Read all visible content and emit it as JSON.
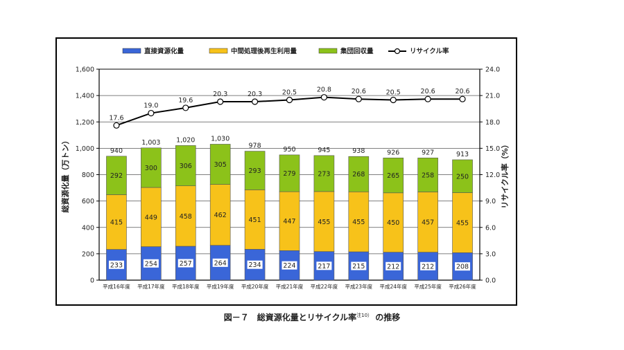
{
  "chart_data": {
    "type": "bar",
    "stacked": true,
    "categories": [
      "平成16年度",
      "平成17年度",
      "平成18年度",
      "平成19年度",
      "平成20年度",
      "平成21年度",
      "平成22年度",
      "平成23年度",
      "平成24年度",
      "平成25年度",
      "平成26年度"
    ],
    "series": [
      {
        "name": "直接資源化量",
        "color": "#3a66d8",
        "values": [
          233,
          254,
          257,
          264,
          234,
          224,
          217,
          215,
          212,
          212,
          208
        ]
      },
      {
        "name": "中間処理後再生利用量",
        "color": "#f7c21a",
        "values": [
          415,
          449,
          458,
          462,
          451,
          447,
          455,
          455,
          450,
          457,
          455
        ]
      },
      {
        "name": "集団回収量",
        "color": "#8cc21a",
        "values": [
          292,
          300,
          306,
          305,
          293,
          279,
          273,
          268,
          265,
          258,
          250
        ]
      }
    ],
    "totals": [
      940,
      1003,
      1020,
      1030,
      978,
      950,
      945,
      938,
      926,
      927,
      913
    ],
    "line": {
      "name": "リサイクル率",
      "values": [
        17.6,
        19.0,
        19.6,
        20.3,
        20.3,
        20.5,
        20.8,
        20.6,
        20.5,
        20.6,
        20.6
      ]
    },
    "ylabel": "総資源化量（万トン）",
    "ylabel2": "リサイクル率（%）",
    "ylim": [
      0,
      1600
    ],
    "y2lim": [
      0,
      24
    ],
    "yticks": [
      "0",
      "200",
      "400",
      "600",
      "800",
      "1,000",
      "1,200",
      "1,400",
      "1,600"
    ],
    "y2ticks": [
      "0.0",
      "3.0",
      "6.0",
      "9.0",
      "12.0",
      "15.0",
      "18.0",
      "21.0",
      "24.0"
    ],
    "grid": true,
    "legend_position": "top"
  },
  "caption": {
    "main": "図－７　総資源化量とリサイクル率",
    "note": "注10）",
    "suffix": "の推移"
  }
}
